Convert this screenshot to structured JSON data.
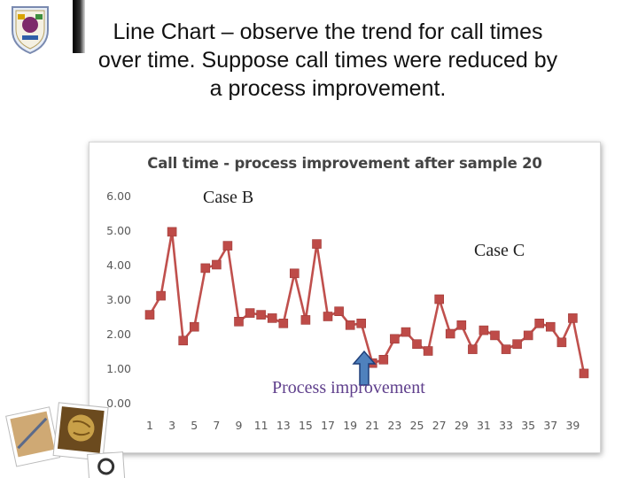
{
  "slide": {
    "title_lines": [
      "Line Chart – observe the trend for call  times",
      "over time.  Suppose call times were     reduced by",
      "a process improvement."
    ]
  },
  "colors": {
    "series": "#c0504d",
    "marker": "#be4b48",
    "axis_text": "#595959",
    "annotation_text": "#222222",
    "improvement_text": "#5f3f8c",
    "arrow_fill": "#4f81bd",
    "arrow_stroke": "#1f3f7a"
  },
  "chart_data": {
    "type": "line",
    "title": "Call time - process improvement after sample 20",
    "xlabel": "",
    "ylabel": "",
    "ylim": [
      0,
      6
    ],
    "yticks": [
      "0.00",
      "1.00",
      "2.00",
      "3.00",
      "4.00",
      "5.00",
      "6.00"
    ],
    "xticks": [
      "1",
      "3",
      "5",
      "7",
      "9",
      "11",
      "13",
      "15",
      "17",
      "19",
      "21",
      "23",
      "25",
      "27",
      "29",
      "31",
      "33",
      "35",
      "37",
      "39"
    ],
    "grid": false,
    "legend": "none",
    "x": [
      1,
      2,
      3,
      4,
      5,
      6,
      7,
      8,
      9,
      10,
      11,
      12,
      13,
      14,
      15,
      16,
      17,
      18,
      19,
      20,
      21,
      22,
      23,
      24,
      25,
      26,
      27,
      28,
      29,
      30,
      31,
      32,
      33,
      34,
      35,
      36,
      37,
      38,
      39,
      40
    ],
    "series": [
      {
        "values": [
          2.55,
          3.1,
          4.95,
          1.8,
          2.2,
          3.9,
          4.0,
          4.55,
          2.35,
          2.6,
          2.55,
          2.45,
          2.3,
          3.75,
          2.4,
          4.6,
          2.5,
          2.65,
          2.25,
          2.3,
          1.15,
          1.25,
          1.85,
          2.05,
          1.7,
          1.5,
          3.0,
          2.0,
          2.25,
          1.55,
          2.1,
          1.95,
          1.55,
          1.7,
          1.95,
          2.3,
          2.2,
          1.75,
          2.45,
          0.85
        ]
      }
    ],
    "annotations": [
      "Case B",
      "Case C",
      "Process improvement"
    ]
  }
}
